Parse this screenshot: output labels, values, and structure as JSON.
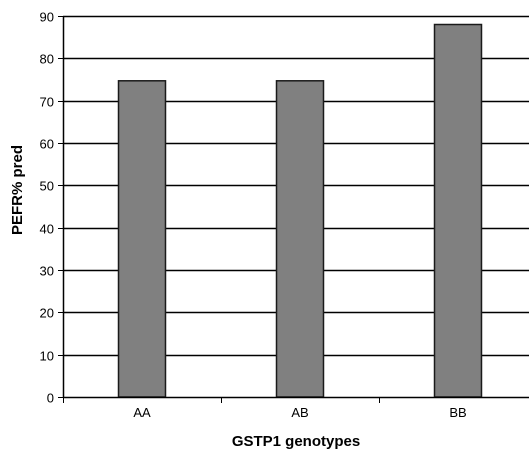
{
  "chart_data": {
    "type": "bar",
    "title": "",
    "xlabel": "GSTP1 genotypes",
    "ylabel": "PEFR% pred",
    "categories": [
      "AA",
      "AB",
      "BB"
    ],
    "values": [
      74.7,
      74.7,
      88
    ],
    "ylim": [
      0,
      90
    ],
    "yticks": [
      0,
      10,
      20,
      30,
      40,
      50,
      60,
      70,
      80,
      90
    ],
    "grid": true,
    "legend": "none",
    "colors": {
      "bar_fill": "#808080",
      "bar_stroke": "#1a1a1a",
      "grid": "#000000",
      "axis": "#000000"
    }
  }
}
